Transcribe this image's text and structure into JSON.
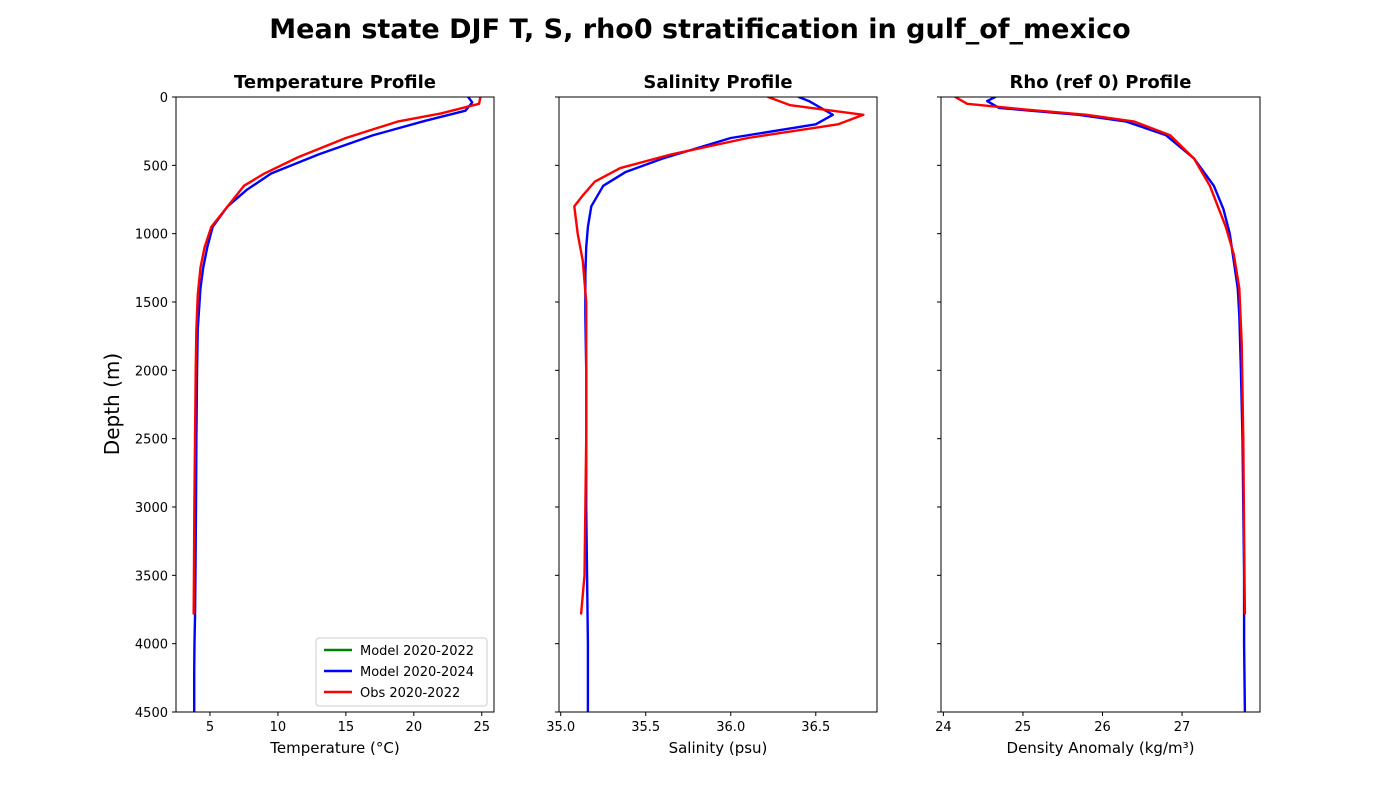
{
  "figure": {
    "suptitle": "Mean state DJF T, S, rho0 stratification in gulf_of_mexico",
    "ylabel": "Depth (m)"
  },
  "legend": {
    "placement": "lower-right",
    "entries": [
      {
        "label": "Model 2020-2022",
        "color": "#008000"
      },
      {
        "label": "Model 2020-2024",
        "color": "#0000ff"
      },
      {
        "label": "Obs 2020-2022",
        "color": "#ff0000"
      }
    ]
  },
  "chart_data": [
    {
      "type": "line",
      "title": "Temperature Profile",
      "xlabel": "Temperature (°C)",
      "ylabel": "Depth (m)",
      "xlim": [
        2.5,
        25.9
      ],
      "ylim": [
        4500,
        0
      ],
      "xticks": [
        5,
        10,
        15,
        20,
        25
      ],
      "yticks": [
        0,
        500,
        1000,
        1500,
        2000,
        2500,
        3000,
        3500,
        4000,
        4500
      ],
      "series": [
        {
          "name": "Model 2020-2022",
          "color": "#008000",
          "x": [],
          "y": []
        },
        {
          "name": "Model 2020-2024",
          "color": "#0000ff",
          "x": [
            24.0,
            24.3,
            23.8,
            20.8,
            17.0,
            13.0,
            9.5,
            7.7,
            6.3,
            5.2,
            4.8,
            4.5,
            4.3,
            4.2,
            4.1,
            4.05,
            4.0,
            3.97,
            3.93,
            3.9,
            3.88,
            3.86,
            3.84,
            3.84
          ],
          "y": [
            0,
            40,
            100,
            175,
            280,
            420,
            560,
            680,
            800,
            950,
            1100,
            1250,
            1400,
            1550,
            1700,
            2000,
            2500,
            3000,
            3500,
            3800,
            3900,
            4000,
            4200,
            4500
          ]
        },
        {
          "name": "Obs 2020-2022",
          "color": "#ff0000",
          "x": [
            24.9,
            24.8,
            22.0,
            18.8,
            15.0,
            11.5,
            9.0,
            7.5,
            6.3,
            5.1,
            4.6,
            4.3,
            4.1,
            4.0,
            3.95,
            3.9,
            3.85,
            3.82,
            3.8
          ],
          "y": [
            0,
            50,
            120,
            180,
            300,
            440,
            560,
            650,
            800,
            950,
            1100,
            1250,
            1450,
            1700,
            2000,
            2500,
            3000,
            3500,
            3780
          ]
        }
      ]
    },
    {
      "type": "line",
      "title": "Salinity Profile",
      "xlabel": "Salinity (psu)",
      "ylabel": "",
      "xlim": [
        34.99,
        36.86
      ],
      "ylim": [
        4500,
        0
      ],
      "xticks": [
        35.0,
        35.5,
        36.0,
        36.5
      ],
      "yticks": [
        0,
        500,
        1000,
        1500,
        2000,
        2500,
        3000,
        3500,
        4000,
        4500
      ],
      "series": [
        {
          "name": "Model 2020-2022",
          "color": "#008000",
          "x": [],
          "y": []
        },
        {
          "name": "Model 2020-2024",
          "color": "#0000ff",
          "x": [
            36.4,
            36.46,
            36.6,
            36.5,
            36.0,
            35.6,
            35.38,
            35.25,
            35.18,
            35.16,
            35.15,
            35.145,
            35.145,
            35.15,
            35.15,
            35.15,
            35.155,
            35.16,
            35.16
          ],
          "y": [
            0,
            30,
            130,
            200,
            300,
            450,
            550,
            650,
            800,
            950,
            1100,
            1300,
            1600,
            2000,
            2500,
            3000,
            3500,
            4000,
            4500
          ]
        },
        {
          "name": "Obs 2020-2022",
          "color": "#ff0000",
          "x": [
            36.22,
            36.35,
            36.78,
            36.63,
            36.1,
            35.65,
            35.35,
            35.2,
            35.13,
            35.08,
            35.1,
            35.13,
            35.15,
            35.15,
            35.15,
            35.14,
            35.12
          ],
          "y": [
            0,
            60,
            130,
            200,
            300,
            420,
            520,
            620,
            720,
            800,
            1000,
            1200,
            1500,
            2000,
            2500,
            3500,
            3780
          ]
        }
      ]
    },
    {
      "type": "line",
      "title": "Rho (ref 0) Profile",
      "xlabel": "Density Anomaly (kg/m³)",
      "ylabel": "",
      "xlim": [
        23.97,
        27.98
      ],
      "ylim": [
        4500,
        0
      ],
      "xticks": [
        24,
        25,
        26,
        27
      ],
      "yticks": [
        0,
        500,
        1000,
        1500,
        2000,
        2500,
        3000,
        3500,
        4000,
        4500
      ],
      "series": [
        {
          "name": "Model 2020-2022",
          "color": "#008000",
          "x": [],
          "y": []
        },
        {
          "name": "Model 2020-2024",
          "color": "#0000ff",
          "x": [
            24.65,
            24.55,
            24.7,
            25.7,
            26.3,
            26.8,
            27.15,
            27.4,
            27.52,
            27.6,
            27.65,
            27.7,
            27.72,
            27.74,
            27.76,
            27.77,
            27.78,
            27.78,
            27.79
          ],
          "y": [
            0,
            30,
            80,
            130,
            180,
            280,
            450,
            650,
            820,
            1000,
            1200,
            1400,
            1600,
            2000,
            2500,
            3000,
            3500,
            4000,
            4500
          ]
        },
        {
          "name": "Obs 2020-2022",
          "color": "#ff0000",
          "x": [
            24.15,
            24.3,
            25.0,
            25.8,
            26.4,
            26.85,
            27.15,
            27.35,
            27.55,
            27.65,
            27.72,
            27.75,
            27.77,
            27.78,
            27.79
          ],
          "y": [
            0,
            50,
            90,
            130,
            180,
            280,
            450,
            650,
            950,
            1150,
            1400,
            1800,
            2500,
            3200,
            3780
          ]
        }
      ]
    }
  ]
}
